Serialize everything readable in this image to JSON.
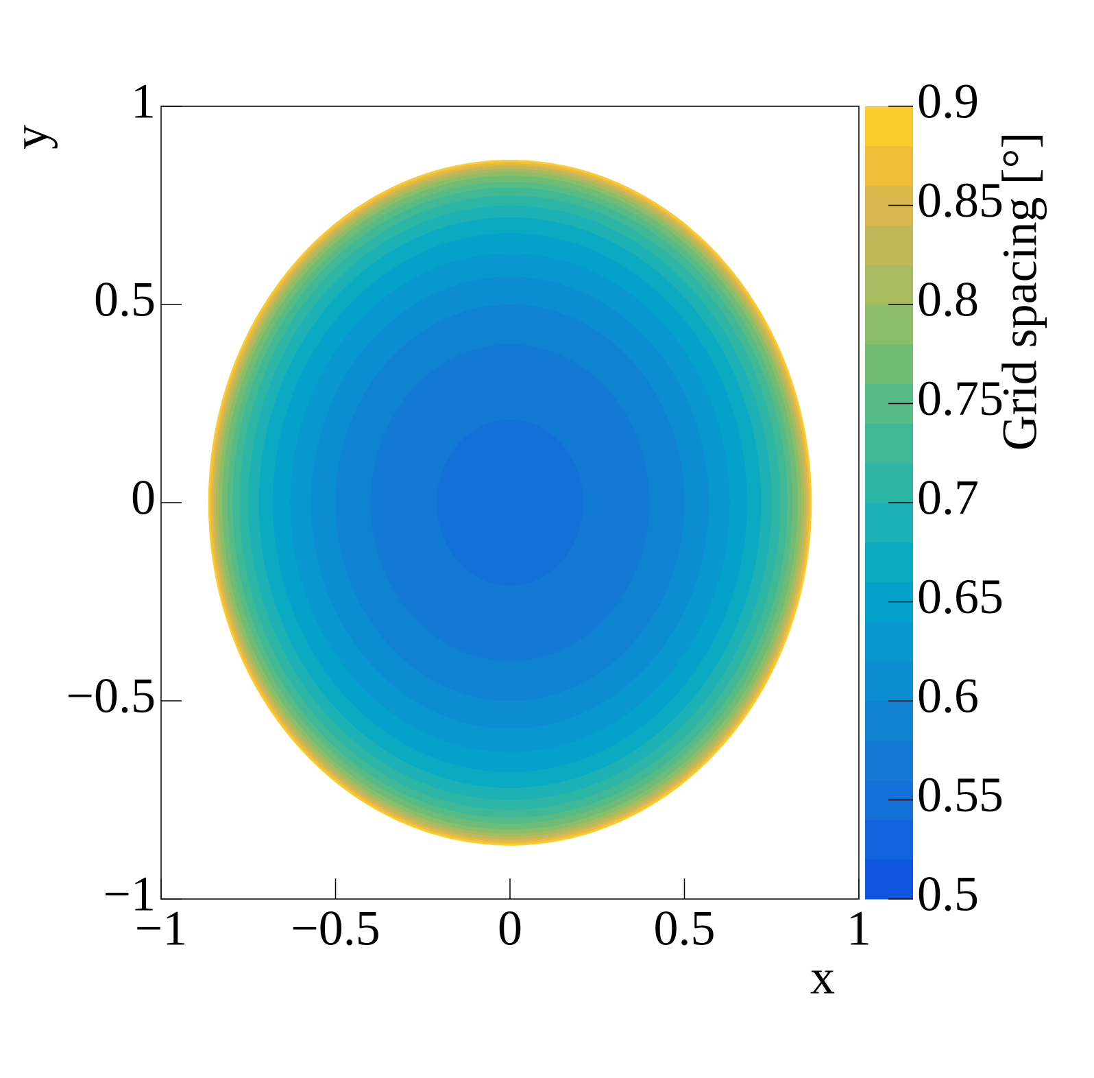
{
  "chart_data": {
    "type": "radial-heatmap",
    "x_label": "x",
    "y_label": "y",
    "z_label": "Grid spacing [°]",
    "xlim": [
      -1,
      1
    ],
    "ylim": [
      -1,
      1
    ],
    "zlim": [
      0.5,
      0.9
    ],
    "xticks": [
      {
        "value": -1,
        "label": "−1"
      },
      {
        "value": -0.5,
        "label": "−0.5"
      },
      0,
      0.5,
      1
    ],
    "yticks": [
      {
        "value": -1,
        "label": "−1"
      },
      {
        "value": -0.5,
        "label": "−0.5"
      },
      0,
      0.5,
      1
    ],
    "zticks": [
      0.5,
      0.55,
      0.6,
      0.65,
      0.7,
      0.75,
      0.8,
      0.85,
      0.9
    ],
    "palette": [
      "#1055e0",
      "#1264dc",
      "#1370d8",
      "#127ad4",
      "#1082d2",
      "#0c8cd1",
      "#0897cf",
      "#04a2ca",
      "#0aabc2",
      "#1db1b5",
      "#2db5a6",
      "#40b896",
      "#56bb85",
      "#70bc76",
      "#8cbd69",
      "#a8bb5f",
      "#c2b85a",
      "#dbb84d",
      "#f0bd3b",
      "#f9cd2e"
    ],
    "r": [
      0.865,
      0.86,
      0.855,
      0.85,
      0.843,
      0.835,
      0.825,
      0.81,
      0.795,
      0.775,
      0.75,
      0.72,
      0.68,
      0.63,
      0.57,
      0.5,
      0.4,
      0.21
    ],
    "values": [
      0.89,
      0.87,
      0.85,
      0.83,
      0.81,
      0.79,
      0.77,
      0.75,
      0.73,
      0.71,
      0.69,
      0.67,
      0.65,
      0.63,
      0.61,
      0.59,
      0.57,
      0.55
    ]
  }
}
